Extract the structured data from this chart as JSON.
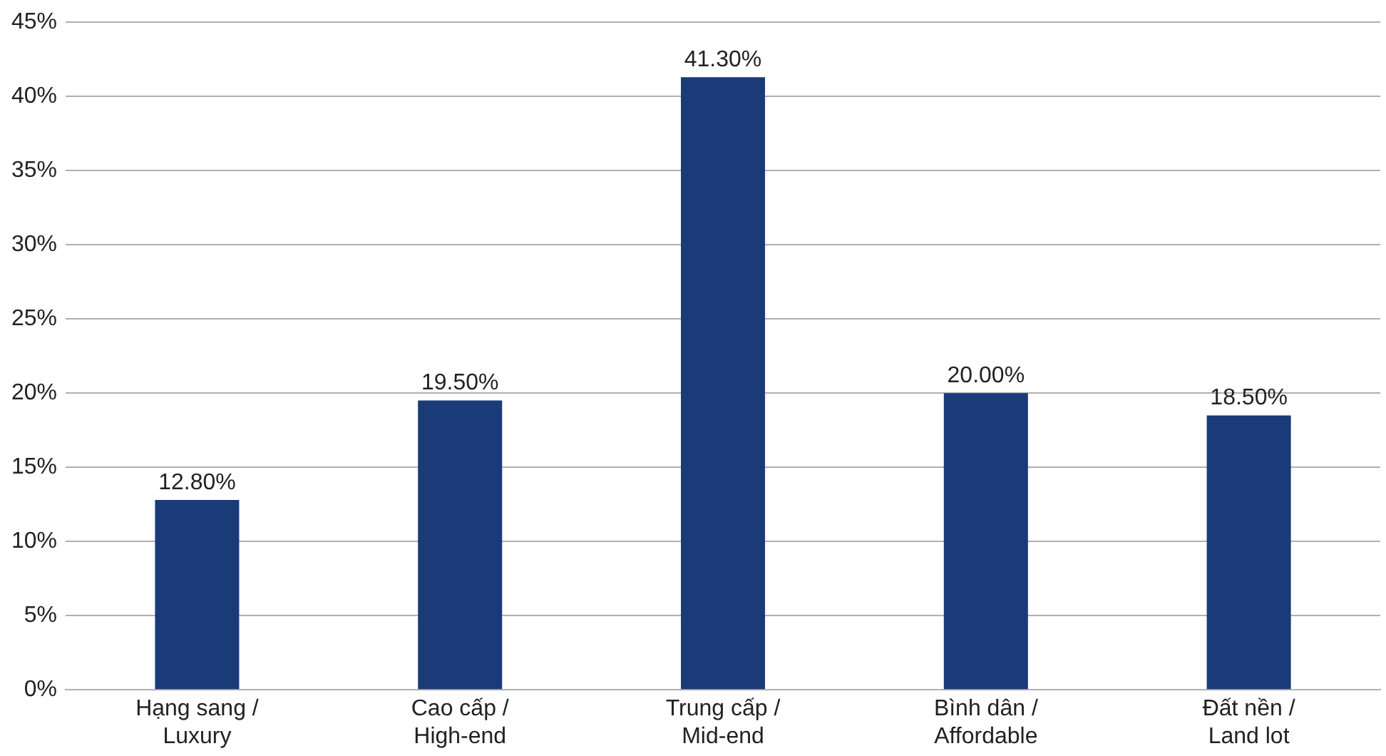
{
  "chart_data": {
    "type": "bar",
    "categories": [
      "Hạng sang /\nLuxury",
      "Cao cấp /\nHigh-end",
      "Trung cấp /\nMid-end",
      "Bình dân /\nAffordable",
      "Đất nền /\nLand lot"
    ],
    "values": [
      12.8,
      19.5,
      41.3,
      20.0,
      18.5
    ],
    "value_labels": [
      "12.80%",
      "19.50%",
      "41.30%",
      "20.00%",
      "18.50%"
    ],
    "color": "#1b3a78",
    "ylim": [
      0,
      45
    ],
    "yticks": [
      {
        "value": 0,
        "label": "0%"
      },
      {
        "value": 5,
        "label": "5%"
      },
      {
        "value": 10,
        "label": "10%"
      },
      {
        "value": 15,
        "label": "15%"
      },
      {
        "value": 20,
        "label": "20%"
      },
      {
        "value": 25,
        "label": "25%"
      },
      {
        "value": 30,
        "label": "30%"
      },
      {
        "value": 35,
        "label": "35%"
      },
      {
        "value": 40,
        "label": "40%"
      },
      {
        "value": 45,
        "label": "45%"
      }
    ],
    "grid": "y",
    "legend": false
  }
}
